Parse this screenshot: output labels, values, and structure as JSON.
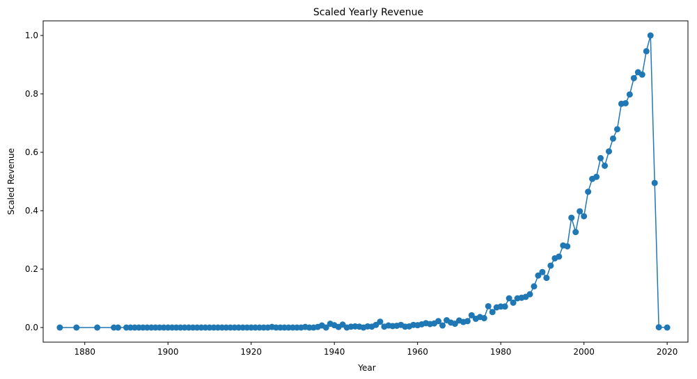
{
  "chart_data": {
    "type": "line",
    "title": "Scaled Yearly Revenue",
    "xlabel": "Year",
    "ylabel": "Scaled Revenue",
    "xlim": [
      1870,
      2025
    ],
    "ylim": [
      -0.05,
      1.05
    ],
    "xticks": [
      1880,
      1900,
      1920,
      1940,
      1960,
      1980,
      2000,
      2020
    ],
    "yticks": [
      0.0,
      0.2,
      0.4,
      0.6,
      0.8,
      1.0
    ],
    "xtick_labels": [
      "1880",
      "1900",
      "1920",
      "1940",
      "1960",
      "1980",
      "2000",
      "2020"
    ],
    "ytick_labels": [
      "0.0",
      "0.2",
      "0.4",
      "0.6",
      "0.8",
      "1.0"
    ],
    "grid": false,
    "markers": true,
    "color": "#1f77b4",
    "series": [
      {
        "x": [
          1874,
          1878,
          1883,
          1887,
          1888,
          1890,
          1891,
          1892,
          1893,
          1894,
          1895,
          1896,
          1897,
          1898,
          1899,
          1900,
          1901,
          1902,
          1903,
          1904,
          1905,
          1906,
          1907,
          1908,
          1909,
          1910,
          1911,
          1912,
          1913,
          1914,
          1915,
          1916,
          1917,
          1918,
          1919,
          1920,
          1921,
          1922,
          1923,
          1924,
          1925,
          1926,
          1927,
          1928,
          1929,
          1930,
          1931,
          1932,
          1933,
          1934,
          1935,
          1936,
          1937,
          1938,
          1939,
          1940,
          1941,
          1942,
          1943,
          1944,
          1945,
          1946,
          1947,
          1948,
          1949,
          1950,
          1951,
          1952,
          1953,
          1954,
          1955,
          1956,
          1957,
          1958,
          1959,
          1960,
          1961,
          1962,
          1963,
          1964,
          1965,
          1966,
          1967,
          1968,
          1969,
          1970,
          1971,
          1972,
          1973,
          1974,
          1975,
          1976,
          1977,
          1978,
          1979,
          1980,
          1981,
          1982,
          1983,
          1984,
          1985,
          1986,
          1987,
          1988,
          1989,
          1990,
          1991,
          1992,
          1993,
          1994,
          1995,
          1996,
          1997,
          1998,
          1999,
          2000,
          2001,
          2002,
          2003,
          2004,
          2005,
          2006,
          2007,
          2008,
          2009,
          2010,
          2011,
          2012,
          2013,
          2014,
          2015,
          2016,
          2017,
          2018,
          2020
        ],
        "y": [
          0.0,
          0.0,
          0.0,
          0.0,
          0.0,
          0.0,
          0.0,
          0.0,
          0.0,
          0.0,
          0.0,
          0.0,
          0.0,
          0.0,
          0.0,
          0.0,
          0.0,
          0.0,
          0.0,
          0.0,
          0.0,
          0.0,
          0.0,
          0.0,
          0.0,
          0.0,
          0.0,
          0.0,
          0.0,
          0.0,
          0.0,
          0.0,
          0.0,
          0.0,
          0.0,
          0.0,
          0.0,
          0.0,
          0.0,
          0.0,
          0.002,
          0.0,
          0.0,
          0.0,
          0.0,
          0.0,
          0.0,
          0.0,
          0.002,
          0.0,
          0.0,
          0.002,
          0.007,
          0.0,
          0.013,
          0.008,
          0.002,
          0.01,
          0.0,
          0.003,
          0.004,
          0.003,
          0.0,
          0.004,
          0.003,
          0.009,
          0.02,
          0.003,
          0.007,
          0.005,
          0.006,
          0.009,
          0.003,
          0.004,
          0.009,
          0.008,
          0.011,
          0.015,
          0.012,
          0.014,
          0.022,
          0.007,
          0.025,
          0.017,
          0.013,
          0.024,
          0.019,
          0.022,
          0.042,
          0.03,
          0.036,
          0.032,
          0.073,
          0.053,
          0.069,
          0.072,
          0.072,
          0.1,
          0.085,
          0.1,
          0.102,
          0.105,
          0.114,
          0.141,
          0.178,
          0.19,
          0.17,
          0.212,
          0.237,
          0.243,
          0.281,
          0.278,
          0.376,
          0.327,
          0.398,
          0.381,
          0.465,
          0.509,
          0.516,
          0.58,
          0.554,
          0.603,
          0.647,
          0.679,
          0.766,
          0.768,
          0.798,
          0.854,
          0.874,
          0.866,
          0.946,
          1.0,
          0.495,
          0.001,
          0.0
        ]
      }
    ]
  }
}
